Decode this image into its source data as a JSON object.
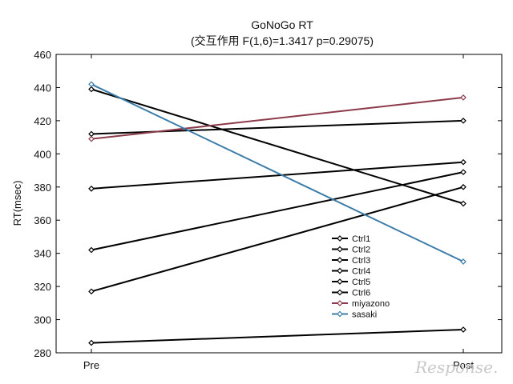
{
  "chart_data": {
    "type": "line",
    "title": "GoNoGo RT",
    "subtitle": "(交互作用 F(1,6)=1.3417 p=0.29075)",
    "xlabel": "",
    "ylabel": "RT(msec)",
    "categories": [
      "Pre",
      "Post"
    ],
    "ylim": [
      280,
      460
    ],
    "yticks": [
      280,
      300,
      320,
      340,
      360,
      380,
      400,
      420,
      440,
      460
    ],
    "grid": false,
    "legend_position": "bottom-right",
    "series": [
      {
        "name": "Ctrl1",
        "values": [
          412,
          420
        ],
        "color": "#000000"
      },
      {
        "name": "Ctrl2",
        "values": [
          439,
          370
        ],
        "color": "#000000"
      },
      {
        "name": "Ctrl3",
        "values": [
          379,
          395
        ],
        "color": "#000000"
      },
      {
        "name": "Ctrl4",
        "values": [
          342,
          389
        ],
        "color": "#000000"
      },
      {
        "name": "Ctrl5",
        "values": [
          317,
          380
        ],
        "color": "#000000"
      },
      {
        "name": "Ctrl6",
        "values": [
          286,
          294
        ],
        "color": "#000000"
      },
      {
        "name": "miyazono",
        "values": [
          409,
          434
        ],
        "color": "#8b3a4a"
      },
      {
        "name": "sasaki",
        "values": [
          442,
          335
        ],
        "color": "#3b7ca8"
      }
    ]
  },
  "watermark": "Response."
}
